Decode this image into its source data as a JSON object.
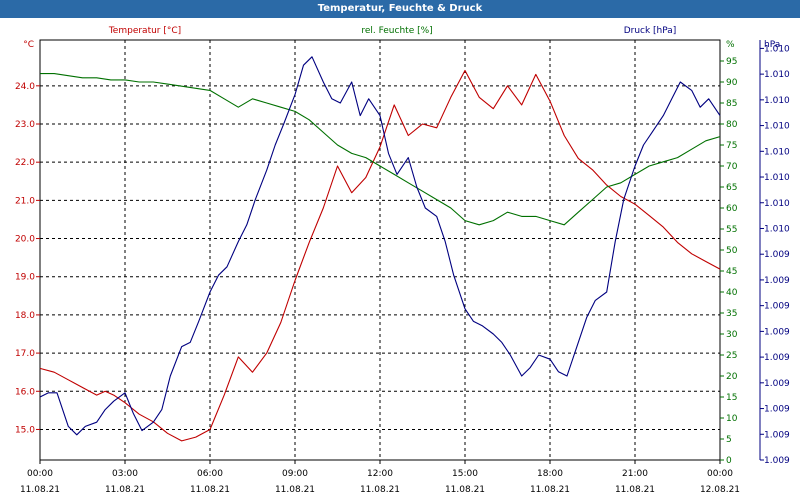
{
  "window": {
    "title": "Temperatur, Feuchte & Druck"
  },
  "chart_data": {
    "type": "line",
    "title": "Temperatur, Feuchte & Druck",
    "x_ticks": [
      {
        "time": "00:00",
        "date": "11.08.21"
      },
      {
        "time": "03:00",
        "date": "11.08.21"
      },
      {
        "time": "06:00",
        "date": "11.08.21"
      },
      {
        "time": "09:00",
        "date": "11.08.21"
      },
      {
        "time": "12:00",
        "date": "11.08.21"
      },
      {
        "time": "15:00",
        "date": "11.08.21"
      },
      {
        "time": "18:00",
        "date": "11.08.21"
      },
      {
        "time": "21:00",
        "date": "11.08.21"
      },
      {
        "time": "00:00",
        "date": "12.08.21"
      }
    ],
    "xlim": [
      "11.08.21 00:00",
      "12.08.21 00:00"
    ],
    "grid": true,
    "axes": {
      "temperature": {
        "side": "left",
        "label": "Temperatur [°C]",
        "unit": "°C",
        "color": "#c00000",
        "ylim": [
          14.2,
          25.2
        ],
        "ticks": [
          "15.0",
          "16.0",
          "17.0",
          "18.0",
          "19.0",
          "20.0",
          "21.0",
          "22.0",
          "23.0",
          "24.0"
        ]
      },
      "humidity": {
        "side": "right",
        "label": "rel. Feuchte [%]",
        "unit": "%",
        "color": "#007000",
        "ylim": [
          0,
          100
        ],
        "ticks": [
          "0",
          "5",
          "10",
          "15",
          "20",
          "25",
          "30",
          "35",
          "40",
          "45",
          "50",
          "55",
          "60",
          "65",
          "70",
          "75",
          "80",
          "85",
          "90",
          "95"
        ]
      },
      "pressure": {
        "side": "right-outer",
        "label": "Druck [hPa]",
        "unit": "hPa",
        "color": "#000080",
        "ticks": [
          "1.009",
          "1.009",
          "1.009",
          "1.009",
          "1.009",
          "1.009",
          "1.009",
          "1.009",
          "1.009",
          "1.010",
          "1.010",
          "1.010",
          "1.010",
          "1.010",
          "1.010",
          "1.010",
          "1.010"
        ]
      }
    },
    "series": [
      {
        "name": "Temperatur [°C]",
        "axis": "temperature",
        "color": "#c00000",
        "x_hours": [
          0,
          0.5,
          1,
          1.5,
          2,
          2.3,
          2.6,
          3,
          3.5,
          4,
          4.5,
          5,
          5.5,
          6,
          6.5,
          7,
          7.5,
          8,
          8.5,
          9,
          9.5,
          10,
          10.5,
          11,
          11.5,
          12,
          12.5,
          13,
          13.5,
          14,
          14.5,
          15,
          15.5,
          16,
          16.5,
          17,
          17.5,
          18,
          18.5,
          19,
          19.5,
          20,
          20.5,
          21,
          21.5,
          22,
          22.5,
          23,
          23.5,
          24
        ],
        "values": [
          16.6,
          16.5,
          16.3,
          16.1,
          15.9,
          16.0,
          15.9,
          15.7,
          15.4,
          15.2,
          14.9,
          14.7,
          14.8,
          15.0,
          15.9,
          16.9,
          16.5,
          17.0,
          17.8,
          18.9,
          19.9,
          20.8,
          21.9,
          21.2,
          21.6,
          22.4,
          23.5,
          22.7,
          23.0,
          22.9,
          23.7,
          24.4,
          23.7,
          23.4,
          24.0,
          23.5,
          24.3,
          23.6,
          22.7,
          22.1,
          21.8,
          21.4,
          21.1,
          20.9,
          20.6,
          20.3,
          19.9,
          19.6,
          19.4,
          19.2
        ]
      },
      {
        "name": "rel. Feuchte [%]",
        "axis": "humidity",
        "color": "#007000",
        "x_hours": [
          0,
          0.5,
          1,
          1.5,
          2,
          2.5,
          3,
          3.5,
          4,
          4.5,
          5,
          5.5,
          6,
          6.5,
          7,
          7.5,
          8,
          8.5,
          9,
          9.5,
          10,
          10.5,
          11,
          11.5,
          12,
          12.5,
          13,
          13.5,
          14,
          14.5,
          15,
          15.5,
          16,
          16.5,
          17,
          17.5,
          18,
          18.5,
          19,
          19.5,
          20,
          20.5,
          21,
          21.5,
          22,
          22.5,
          23,
          23.5,
          24
        ],
        "values": [
          92,
          92,
          91.5,
          91,
          91,
          90.5,
          90.5,
          90,
          90,
          89.5,
          89,
          88.5,
          88,
          86,
          84,
          86,
          85,
          84,
          83,
          81,
          78,
          75,
          73,
          72,
          70,
          68,
          66,
          64,
          62,
          60,
          57,
          56,
          57,
          59,
          58,
          58,
          57,
          56,
          59,
          62,
          65,
          66,
          68,
          70,
          71,
          72,
          74,
          76,
          77
        ]
      },
      {
        "name": "Druck [hPa]",
        "axis": "pressure",
        "color": "#000080",
        "x_hours": [
          0,
          0.3,
          0.6,
          1,
          1.3,
          1.6,
          2,
          2.3,
          2.6,
          3,
          3.3,
          3.6,
          4,
          4.3,
          4.6,
          5,
          5.3,
          5.6,
          6,
          6.3,
          6.6,
          7,
          7.3,
          7.6,
          8,
          8.3,
          8.6,
          9,
          9.3,
          9.6,
          10,
          10.3,
          10.6,
          11,
          11.3,
          11.6,
          12,
          12.3,
          12.6,
          13,
          13.3,
          13.6,
          14,
          14.3,
          14.6,
          15,
          15.3,
          15.6,
          16,
          16.3,
          16.6,
          17,
          17.3,
          17.6,
          18,
          18.3,
          18.6,
          19,
          19.3,
          19.6,
          20,
          20.3,
          20.6,
          21,
          21.3,
          21.6,
          22,
          22.3,
          22.6,
          23,
          23.3,
          23.6,
          24
        ],
        "note": "pressure shown on a normalized 0-1 scale of the pressure axis (tick labels are rounded to 1.009/1.010)",
        "values": [
          0.15,
          0.16,
          0.16,
          0.08,
          0.06,
          0.08,
          0.09,
          0.12,
          0.14,
          0.16,
          0.11,
          0.07,
          0.09,
          0.12,
          0.2,
          0.27,
          0.28,
          0.33,
          0.4,
          0.44,
          0.46,
          0.52,
          0.56,
          0.62,
          0.69,
          0.75,
          0.8,
          0.87,
          0.94,
          0.96,
          0.9,
          0.86,
          0.85,
          0.9,
          0.82,
          0.86,
          0.82,
          0.73,
          0.68,
          0.72,
          0.65,
          0.6,
          0.58,
          0.52,
          0.44,
          0.36,
          0.33,
          0.32,
          0.3,
          0.28,
          0.25,
          0.2,
          0.22,
          0.25,
          0.24,
          0.21,
          0.2,
          0.28,
          0.34,
          0.38,
          0.4,
          0.52,
          0.62,
          0.7,
          0.75,
          0.78,
          0.82,
          0.86,
          0.9,
          0.88,
          0.84,
          0.86,
          0.82
        ]
      }
    ]
  }
}
